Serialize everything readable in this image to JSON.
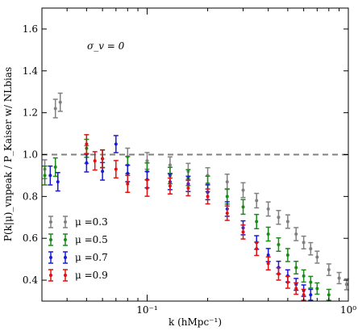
{
  "chart_data": {
    "type": "scatter",
    "title": "",
    "xlabel": "k (hMpc⁻¹)",
    "ylabel": "P(k|μ)_vnpeak / P_Kaiser w/ NLbias",
    "xscale": "log",
    "xlim": [
      0.03,
      1.0
    ],
    "ylim": [
      0.3,
      1.7
    ],
    "yticks": [
      0.4,
      0.6,
      0.8,
      1.0,
      1.2,
      1.4,
      1.6
    ],
    "ytick_labels": [
      "0.4",
      "0.6",
      "0.8",
      "1.0",
      "1.2",
      "1.4",
      "1.6"
    ],
    "xtick_labels": [
      "10⁻¹",
      "10⁰"
    ],
    "annotation": "σ_v = 0",
    "reference_line": {
      "y": 1.0,
      "style": "dashed",
      "color": "#808080"
    },
    "legend_position": "lower-left",
    "series": [
      {
        "name": "μ =0.3",
        "color": "#808080",
        "points": [
          [
            0.031,
            0.93
          ],
          [
            0.035,
            1.22
          ],
          [
            0.037,
            1.25
          ],
          [
            0.05,
            1.0
          ],
          [
            0.06,
            0.98
          ],
          [
            0.08,
            0.99
          ],
          [
            0.1,
            0.97
          ],
          [
            0.13,
            0.95
          ],
          [
            0.16,
            0.92
          ],
          [
            0.2,
            0.9
          ],
          [
            0.25,
            0.87
          ],
          [
            0.3,
            0.83
          ],
          [
            0.35,
            0.78
          ],
          [
            0.4,
            0.74
          ],
          [
            0.45,
            0.7
          ],
          [
            0.5,
            0.68
          ],
          [
            0.55,
            0.62
          ],
          [
            0.6,
            0.58
          ],
          [
            0.65,
            0.55
          ],
          [
            0.7,
            0.51
          ],
          [
            0.8,
            0.45
          ],
          [
            0.9,
            0.41
          ],
          [
            0.98,
            0.38
          ]
        ]
      },
      {
        "name": "μ =0.5",
        "color": "#1a8a1a",
        "points": [
          [
            0.031,
            0.9
          ],
          [
            0.035,
            0.94
          ],
          [
            0.05,
            1.03
          ],
          [
            0.06,
            0.98
          ],
          [
            0.08,
            0.95
          ],
          [
            0.1,
            0.92
          ],
          [
            0.13,
            0.9
          ],
          [
            0.16,
            0.89
          ],
          [
            0.2,
            0.86
          ],
          [
            0.25,
            0.8
          ],
          [
            0.3,
            0.75
          ],
          [
            0.35,
            0.68
          ],
          [
            0.4,
            0.62
          ],
          [
            0.45,
            0.57
          ],
          [
            0.5,
            0.52
          ],
          [
            0.55,
            0.46
          ],
          [
            0.6,
            0.42
          ],
          [
            0.65,
            0.39
          ],
          [
            0.7,
            0.36
          ],
          [
            0.8,
            0.33
          ]
        ]
      },
      {
        "name": "μ =0.7",
        "color": "#1a1ad6",
        "points": [
          [
            0.033,
            0.9
          ],
          [
            0.036,
            0.87
          ],
          [
            0.05,
            0.96
          ],
          [
            0.06,
            0.92
          ],
          [
            0.07,
            1.05
          ],
          [
            0.08,
            0.91
          ],
          [
            0.1,
            0.88
          ],
          [
            0.13,
            0.87
          ],
          [
            0.16,
            0.86
          ],
          [
            0.2,
            0.82
          ],
          [
            0.25,
            0.74
          ],
          [
            0.3,
            0.65
          ],
          [
            0.35,
            0.58
          ],
          [
            0.4,
            0.52
          ],
          [
            0.45,
            0.46
          ],
          [
            0.5,
            0.42
          ],
          [
            0.55,
            0.38
          ],
          [
            0.6,
            0.35
          ],
          [
            0.65,
            0.33
          ]
        ]
      },
      {
        "name": "μ =0.9",
        "color": "#e01010",
        "points": [
          [
            0.05,
            1.05
          ],
          [
            0.055,
            0.97
          ],
          [
            0.06,
            0.98
          ],
          [
            0.07,
            0.93
          ],
          [
            0.08,
            0.86
          ],
          [
            0.1,
            0.84
          ],
          [
            0.13,
            0.85
          ],
          [
            0.16,
            0.84
          ],
          [
            0.2,
            0.8
          ],
          [
            0.25,
            0.72
          ],
          [
            0.3,
            0.63
          ],
          [
            0.35,
            0.55
          ],
          [
            0.4,
            0.48
          ],
          [
            0.45,
            0.43
          ],
          [
            0.5,
            0.39
          ],
          [
            0.55,
            0.36
          ],
          [
            0.6,
            0.33
          ]
        ]
      }
    ]
  }
}
